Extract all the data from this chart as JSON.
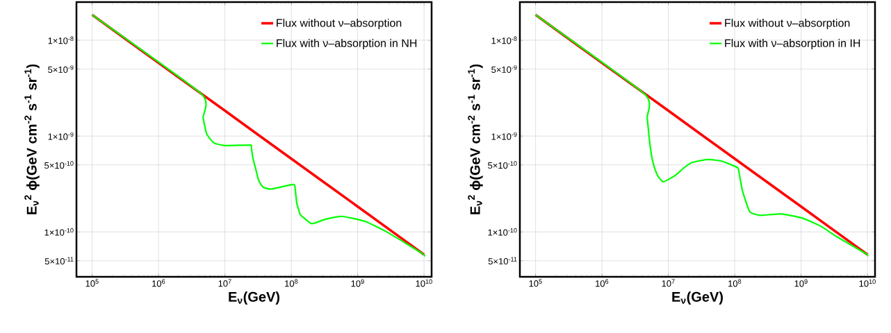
{
  "chart_data": [
    {
      "type": "line",
      "xlabel": "E$_{ν}$(GeV)",
      "ylabel": "E$_{ν}$$^{2}$ ϕ(GeV cm$^{-2}$ s$^{-1}$ sr$^{-1}$)",
      "log": "xy",
      "grid": true,
      "legend": "top right",
      "xlim": [
        58000,
        13000000000
      ],
      "ylim": [
        3.4e-11,
        2.5e-08
      ],
      "xticks": [
        {
          "value": 100000.0,
          "label": "10$^{5}$"
        },
        {
          "value": 1000000.0,
          "label": "10$^{6}$"
        },
        {
          "value": 10000000.0,
          "label": "10$^{7}$"
        },
        {
          "value": 100000000.0,
          "label": "10$^{8}$"
        },
        {
          "value": 1000000000.0,
          "label": "10$^{9}$"
        },
        {
          "value": 10000000000.0,
          "label": "10$^{10}$"
        }
      ],
      "yticks": [
        {
          "value": 5e-11,
          "label": "5×10$^{-11}$"
        },
        {
          "value": 1e-10,
          "label": "1×10$^{-10}$"
        },
        {
          "value": 5e-10,
          "label": "5×10$^{-10}$"
        },
        {
          "value": 1e-09,
          "label": "1×10$^{-9}$"
        },
        {
          "value": 5e-09,
          "label": "5×10$^{-9}$"
        },
        {
          "value": 1e-08,
          "label": "1×10$^{-8}$"
        }
      ],
      "series": [
        {
          "name": "Flux without ν–absorption",
          "color": "#ff0000",
          "x": [
            100000.0,
            1000000.0,
            10000000.0,
            100000000.0,
            1000000000.0,
            10000000000.0
          ],
          "values": [
            1.84e-08,
            5.8e-09,
            1.84e-09,
            5.8e-10,
            1.84e-10,
            5.8e-11
          ]
        },
        {
          "name": "Flux with ν–absorption in NH",
          "color": "#00ff00",
          "x": [
            100000.0,
            4450000.0,
            4700000.0,
            5300000.0,
            6800000.0,
            10000000.0,
            24000000.0,
            25000000.0,
            26500000.0,
            29000000.0,
            32000000.0,
            37000000.0,
            49000000.0,
            107000000.0,
            114000000.0,
            121000000.0,
            136000000.0,
            148000000.0,
            204000000.0,
            333000000.0,
            590000000.0,
            1320000000.0,
            2960000000.0,
            9600000000.0,
            10000000000.0
          ],
          "values": [
            1.84e-08,
            2.74e-09,
            1.57e-09,
            1.06e-09,
            8.5e-10,
            7.96e-10,
            8.05e-10,
            7.6e-10,
            5.8e-10,
            4.6e-10,
            3.5e-10,
            2.96e-10,
            2.8e-10,
            3.13e-10,
            2.87e-10,
            2e-10,
            1.52e-10,
            1.44e-10,
            1.22e-10,
            1.36e-10,
            1.45e-10,
            1.28e-10,
            9.7e-11,
            5.9e-11,
            5.6e-11
          ]
        }
      ]
    },
    {
      "type": "line",
      "xlabel": "E$_{ν}$(GeV)",
      "ylabel": "E$_{ν}$$^{2}$ ϕ(GeV cm$^{-2}$ s$^{-1}$ sr$^{-1}$)",
      "log": "xy",
      "grid": true,
      "legend": "top right",
      "xlim": [
        58000,
        13000000000
      ],
      "ylim": [
        3.4e-11,
        2.5e-08
      ],
      "xticks": [
        {
          "value": 100000.0,
          "label": "10$^{5}$"
        },
        {
          "value": 1000000.0,
          "label": "10$^{6}$"
        },
        {
          "value": 10000000.0,
          "label": "10$^{7}$"
        },
        {
          "value": 100000000.0,
          "label": "10$^{8}$"
        },
        {
          "value": 1000000000.0,
          "label": "10$^{9}$"
        },
        {
          "value": 10000000000.0,
          "label": "10$^{10}$"
        }
      ],
      "yticks": [
        {
          "value": 5e-11,
          "label": "5×10$^{-11}$"
        },
        {
          "value": 1e-10,
          "label": "1×10$^{-10}$"
        },
        {
          "value": 5e-10,
          "label": "5×10$^{-10}$"
        },
        {
          "value": 1e-09,
          "label": "1×10$^{-9}$"
        },
        {
          "value": 5e-09,
          "label": "5×10$^{-9}$"
        },
        {
          "value": 1e-08,
          "label": "1×10$^{-8}$"
        }
      ],
      "series": [
        {
          "name": "Flux without ν–absorption",
          "color": "#ff0000",
          "x": [
            100000.0,
            1000000.0,
            10000000.0,
            100000000.0,
            1000000000.0,
            10000000000.0
          ],
          "values": [
            1.84e-08,
            5.8e-09,
            1.84e-09,
            5.8e-10,
            1.84e-10,
            5.8e-11
          ]
        },
        {
          "name": "Flux with ν–absorption in IH",
          "color": "#00ff00",
          "x": [
            100000.0,
            4400000.0,
            4800000.0,
            5200000.0,
            5700000.0,
            6400000.0,
            7200000.0,
            8500000.0,
            12800000.0,
            17700000.0,
            22600000.0,
            39800000.0,
            65000000.0,
            110000000.0,
            115000000.0,
            129000000.0,
            158000000.0,
            172000000.0,
            238000000.0,
            494000000.0,
            1030000000.0,
            1970000000.0,
            3470000000.0,
            9600000000.0,
            10000000000.0
          ],
          "values": [
            1.84e-08,
            2.74e-09,
            1.57e-09,
            9e-10,
            5.8e-10,
            4.36e-10,
            3.7e-10,
            3.34e-10,
            3.9e-10,
            4.74e-10,
            5.3e-10,
            5.7e-10,
            5.46e-10,
            4.7e-10,
            4.36e-10,
            2.8e-10,
            1.8e-10,
            1.6e-10,
            1.49e-10,
            1.54e-10,
            1.4e-10,
            1.15e-10,
            8.9e-11,
            5.9e-11,
            5.6e-11
          ]
        }
      ]
    }
  ]
}
